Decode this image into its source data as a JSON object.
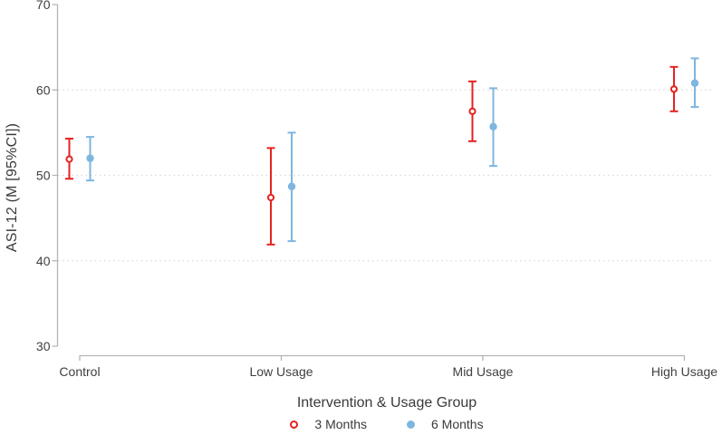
{
  "colors": {
    "background": "#ffffff",
    "axis": "#b5b5b5",
    "grid": "#d9d9d9",
    "tick_text": "#404040",
    "title_text": "#3a3a3a",
    "series_red": "#e42320",
    "series_blue": "#7eb6e0"
  },
  "chart_data": {
    "type": "errorbar",
    "title": "",
    "x_axis": {
      "label": "Intervention & Usage Group",
      "categories": [
        "Control",
        "Low Usage",
        "Mid Usage",
        "High Usage"
      ]
    },
    "y_axis": {
      "label": "ASI-12 (M [95%CI])",
      "min": 30,
      "max": 70,
      "ticks": [
        70,
        60,
        50,
        40,
        30
      ],
      "gridline_ticks": [
        60,
        50,
        40
      ]
    },
    "grid": "dotted horizontal",
    "legend_position": "bottom center",
    "series": [
      {
        "name": "3 Months",
        "color": "#e42320",
        "marker": "open-circle",
        "points": [
          {
            "group": "Control",
            "mean": 51.9,
            "ci_low": 49.6,
            "ci_high": 54.3
          },
          {
            "group": "Low Usage",
            "mean": 47.4,
            "ci_low": 41.9,
            "ci_high": 53.2
          },
          {
            "group": "Mid Usage",
            "mean": 57.5,
            "ci_low": 54.0,
            "ci_high": 61.0
          },
          {
            "group": "High Usage",
            "mean": 60.1,
            "ci_low": 57.5,
            "ci_high": 62.7
          }
        ]
      },
      {
        "name": "6 Months",
        "color": "#7eb6e0",
        "marker": "filled-circle",
        "points": [
          {
            "group": "Control",
            "mean": 52.0,
            "ci_low": 49.4,
            "ci_high": 54.5
          },
          {
            "group": "Low Usage",
            "mean": 48.7,
            "ci_low": 42.3,
            "ci_high": 55.0
          },
          {
            "group": "Mid Usage",
            "mean": 55.7,
            "ci_low": 51.1,
            "ci_high": 60.2
          },
          {
            "group": "High Usage",
            "mean": 60.8,
            "ci_low": 58.0,
            "ci_high": 63.7
          }
        ]
      }
    ]
  }
}
